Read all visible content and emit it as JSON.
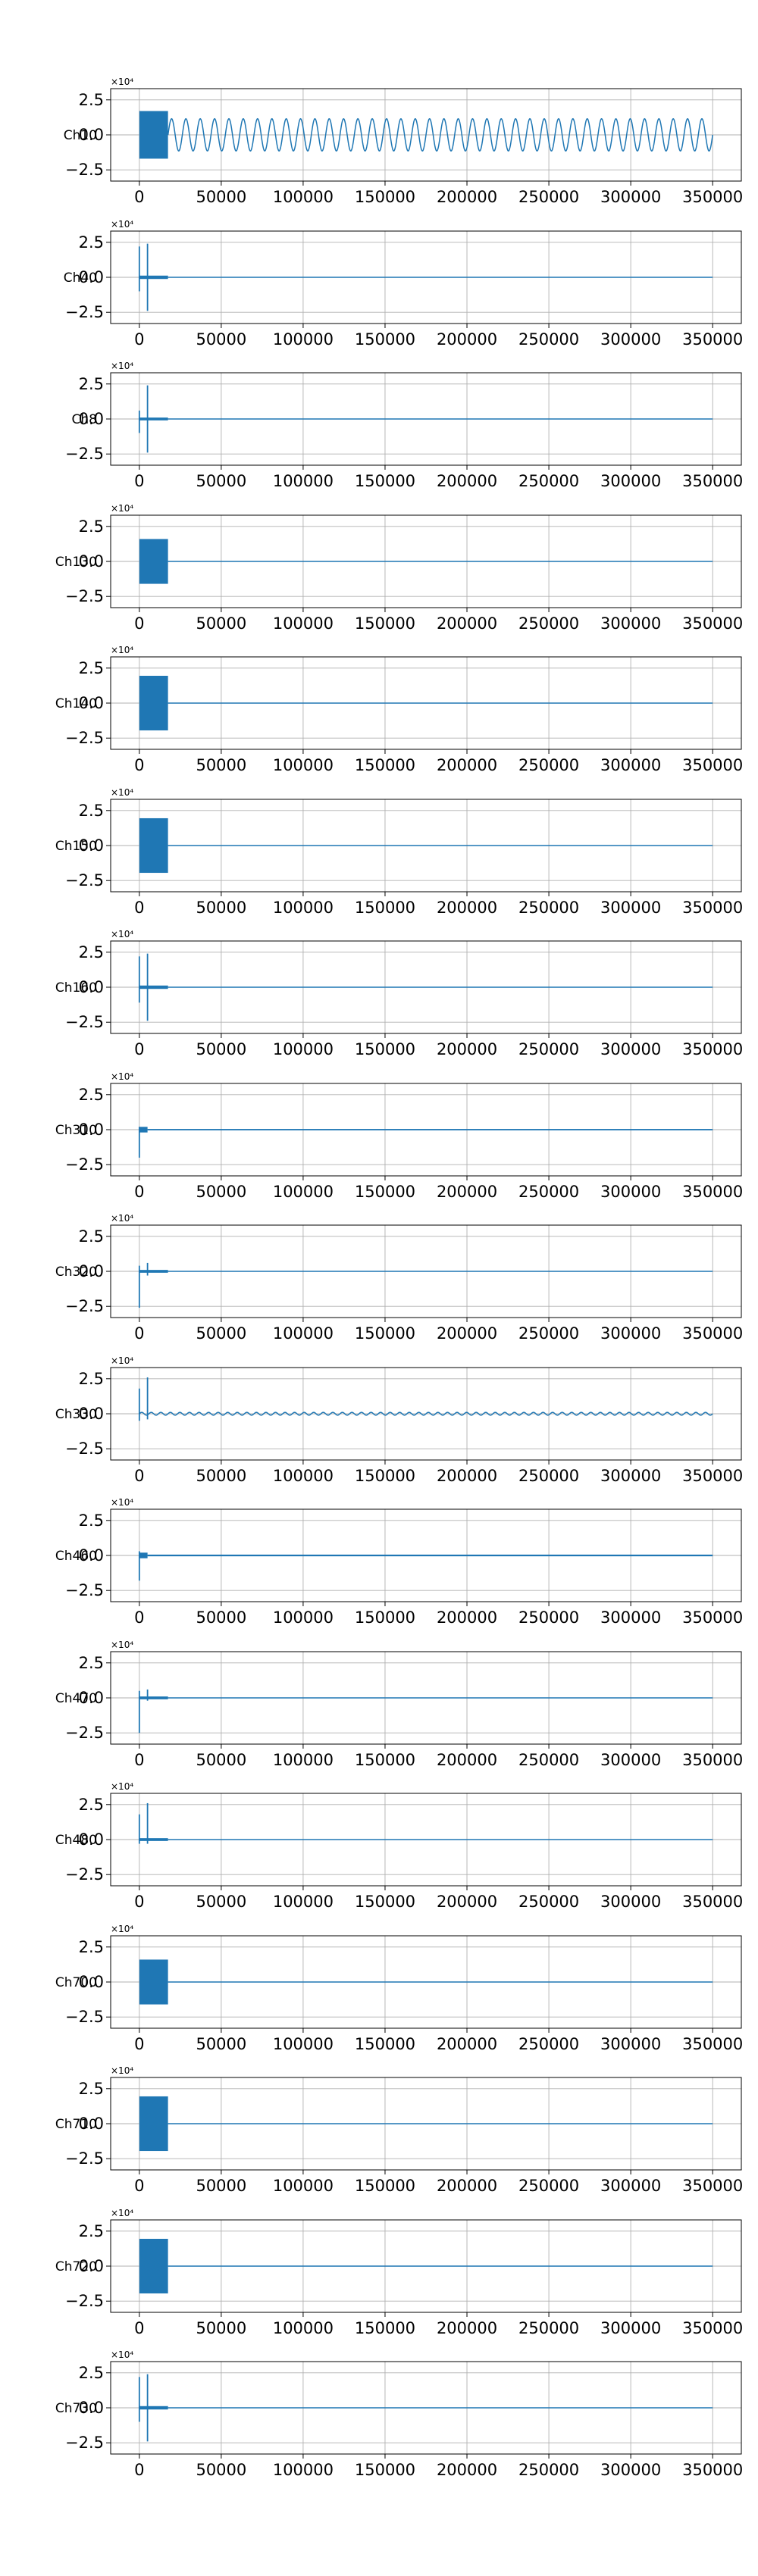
{
  "chart_data": [
    {
      "type": "line",
      "ylabel": "Ch10",
      "yscale_label": "×10⁴",
      "x_ticks": [
        0,
        50000,
        100000,
        150000,
        200000,
        250000,
        300000,
        350000
      ],
      "y_ticks": [
        -2.5,
        0.0,
        2.5
      ],
      "ylim": [
        -3.3,
        3.3
      ],
      "xlim": [
        -17500,
        367500
      ],
      "grid": true,
      "series": [
        {
          "segments": [
            {
              "x_start": 0,
              "x_end": 17500,
              "amplitude": 1.7,
              "kind": "dense"
            },
            {
              "x_start": 17500,
              "x_end": 350000,
              "amplitude": 1.15,
              "kind": "sine",
              "cycles": 38
            }
          ]
        }
      ]
    },
    {
      "type": "line",
      "ylabel": "Ch40",
      "yscale_label": "×10⁴",
      "x_ticks": [
        0,
        50000,
        100000,
        150000,
        200000,
        250000,
        300000,
        350000
      ],
      "y_ticks": [
        -2.5,
        0.0,
        2.5
      ],
      "ylim": [
        -3.3,
        3.3
      ],
      "xlim": [
        -17500,
        367500
      ],
      "grid": true,
      "series": [
        {
          "segments": [
            {
              "x": 0,
              "y_min": -1.0,
              "y_max": 2.2,
              "kind": "spike"
            },
            {
              "x": 5000,
              "y_min": -2.4,
              "y_max": 2.4,
              "kind": "spike"
            },
            {
              "x_start": 0,
              "x_end": 17500,
              "amplitude": 0.12,
              "kind": "dense"
            },
            {
              "x_start": 17500,
              "x_end": 350000,
              "amplitude": 0.0,
              "kind": "flat"
            }
          ]
        }
      ]
    },
    {
      "type": "line",
      "ylabel": "Ch8",
      "yscale_label": "×10⁴",
      "x_ticks": [
        0,
        50000,
        100000,
        150000,
        200000,
        250000,
        300000,
        350000
      ],
      "y_ticks": [
        -2.5,
        0.0,
        2.5
      ],
      "ylim": [
        -3.3,
        3.3
      ],
      "xlim": [
        -17500,
        367500
      ],
      "grid": true,
      "series": [
        {
          "segments": [
            {
              "x": 0,
              "y_min": -1.0,
              "y_max": 0.6,
              "kind": "spike"
            },
            {
              "x": 5000,
              "y_min": -2.4,
              "y_max": 2.4,
              "kind": "spike"
            },
            {
              "x_start": 0,
              "x_end": 17500,
              "amplitude": 0.1,
              "kind": "dense"
            },
            {
              "x_start": 17500,
              "x_end": 350000,
              "amplitude": 0.0,
              "kind": "flat"
            }
          ]
        }
      ]
    },
    {
      "type": "line",
      "ylabel": "Ch130",
      "yscale_label": "×10⁴",
      "x_ticks": [
        0,
        50000,
        100000,
        150000,
        200000,
        250000,
        300000,
        350000
      ],
      "y_ticks": [
        -2.5,
        0.0,
        2.5
      ],
      "ylim": [
        -3.3,
        3.3
      ],
      "xlim": [
        -17500,
        367500
      ],
      "grid": true,
      "series": [
        {
          "segments": [
            {
              "x_start": 0,
              "x_end": 17500,
              "amplitude": 1.6,
              "kind": "dense"
            },
            {
              "x_start": 17500,
              "x_end": 350000,
              "amplitude": 0.0,
              "kind": "flat"
            }
          ]
        }
      ]
    },
    {
      "type": "line",
      "ylabel": "Ch140",
      "yscale_label": "×10⁴",
      "x_ticks": [
        0,
        50000,
        100000,
        150000,
        200000,
        250000,
        300000,
        350000
      ],
      "y_ticks": [
        -2.5,
        0.0,
        2.5
      ],
      "ylim": [
        -3.3,
        3.3
      ],
      "xlim": [
        -17500,
        367500
      ],
      "grid": true,
      "series": [
        {
          "segments": [
            {
              "x_start": 0,
              "x_end": 17500,
              "amplitude": 1.95,
              "kind": "dense"
            },
            {
              "x_start": 17500,
              "x_end": 350000,
              "amplitude": 0.0,
              "kind": "flat"
            }
          ]
        }
      ]
    },
    {
      "type": "line",
      "ylabel": "Ch150",
      "yscale_label": "×10⁴",
      "x_ticks": [
        0,
        50000,
        100000,
        150000,
        200000,
        250000,
        300000,
        350000
      ],
      "y_ticks": [
        -2.5,
        0.0,
        2.5
      ],
      "ylim": [
        -3.3,
        3.3
      ],
      "xlim": [
        -17500,
        367500
      ],
      "grid": true,
      "series": [
        {
          "segments": [
            {
              "x_start": 0,
              "x_end": 17500,
              "amplitude": 1.95,
              "kind": "dense"
            },
            {
              "x_start": 17500,
              "x_end": 350000,
              "amplitude": 0.0,
              "kind": "flat"
            }
          ]
        }
      ]
    },
    {
      "type": "line",
      "ylabel": "Ch160",
      "yscale_label": "×10⁴",
      "x_ticks": [
        0,
        50000,
        100000,
        150000,
        200000,
        250000,
        300000,
        350000
      ],
      "y_ticks": [
        -2.5,
        0.0,
        2.5
      ],
      "ylim": [
        -3.3,
        3.3
      ],
      "xlim": [
        -17500,
        367500
      ],
      "grid": true,
      "series": [
        {
          "segments": [
            {
              "x": 0,
              "y_min": -1.1,
              "y_max": 2.2,
              "kind": "spike"
            },
            {
              "x": 5000,
              "y_min": -2.4,
              "y_max": 2.4,
              "kind": "spike"
            },
            {
              "x_start": 0,
              "x_end": 17500,
              "amplitude": 0.12,
              "kind": "dense"
            },
            {
              "x_start": 17500,
              "x_end": 350000,
              "amplitude": 0.0,
              "kind": "flat"
            }
          ]
        }
      ]
    },
    {
      "type": "line",
      "ylabel": "Ch310",
      "yscale_label": "×10⁴",
      "x_ticks": [
        0,
        50000,
        100000,
        150000,
        200000,
        250000,
        300000,
        350000
      ],
      "y_ticks": [
        -2.5,
        0.0,
        2.5
      ],
      "ylim": [
        -3.3,
        3.3
      ],
      "xlim": [
        -17500,
        367500
      ],
      "grid": true,
      "series": [
        {
          "segments": [
            {
              "x": 0,
              "y_min": -2.0,
              "y_max": 0.2,
              "kind": "spike"
            },
            {
              "x_start": 0,
              "x_end": 5000,
              "amplitude": 0.2,
              "kind": "dense"
            },
            {
              "x_start": 5000,
              "x_end": 350000,
              "amplitude": 0.05,
              "kind": "dense"
            }
          ]
        }
      ]
    },
    {
      "type": "line",
      "ylabel": "Ch320",
      "yscale_label": "×10⁴",
      "x_ticks": [
        0,
        50000,
        100000,
        150000,
        200000,
        250000,
        300000,
        350000
      ],
      "y_ticks": [
        -2.5,
        0.0,
        2.5
      ],
      "ylim": [
        -3.3,
        3.3
      ],
      "xlim": [
        -17500,
        367500
      ],
      "grid": true,
      "series": [
        {
          "segments": [
            {
              "x": 0,
              "y_min": -2.6,
              "y_max": 0.4,
              "kind": "spike"
            },
            {
              "x": 5000,
              "y_min": -0.3,
              "y_max": 0.6,
              "kind": "spike"
            },
            {
              "x_start": 0,
              "x_end": 17500,
              "amplitude": 0.1,
              "kind": "dense"
            },
            {
              "x_start": 17500,
              "x_end": 350000,
              "amplitude": 0.0,
              "kind": "flat"
            }
          ]
        }
      ]
    },
    {
      "type": "line",
      "ylabel": "Ch330",
      "yscale_label": "×10⁴",
      "x_ticks": [
        0,
        50000,
        100000,
        150000,
        200000,
        250000,
        300000,
        350000
      ],
      "y_ticks": [
        -2.5,
        0.0,
        2.5
      ],
      "ylim": [
        -3.3,
        3.3
      ],
      "xlim": [
        -17500,
        367500
      ],
      "grid": true,
      "series": [
        {
          "segments": [
            {
              "x": 0,
              "y_min": -0.5,
              "y_max": 1.8,
              "kind": "spike"
            },
            {
              "x": 5000,
              "y_min": -0.4,
              "y_max": 2.6,
              "kind": "spike"
            },
            {
              "x_start": 0,
              "x_end": 350000,
              "amplitude": 0.1,
              "kind": "sine",
              "cycles": 60
            }
          ]
        }
      ]
    },
    {
      "type": "line",
      "ylabel": "Ch460",
      "yscale_label": "×10⁴",
      "x_ticks": [
        0,
        50000,
        100000,
        150000,
        200000,
        250000,
        300000,
        350000
      ],
      "y_ticks": [
        -2.5,
        0.0,
        2.5
      ],
      "ylim": [
        -3.3,
        3.3
      ],
      "xlim": [
        -17500,
        367500
      ],
      "grid": true,
      "series": [
        {
          "segments": [
            {
              "x": 0,
              "y_min": -1.8,
              "y_max": 0.3,
              "kind": "spike"
            },
            {
              "x_start": 0,
              "x_end": 5000,
              "amplitude": 0.2,
              "kind": "dense"
            },
            {
              "x_start": 5000,
              "x_end": 350000,
              "amplitude": 0.06,
              "kind": "dense"
            }
          ]
        }
      ]
    },
    {
      "type": "line",
      "ylabel": "Ch470",
      "yscale_label": "×10⁴",
      "x_ticks": [
        0,
        50000,
        100000,
        150000,
        200000,
        250000,
        300000,
        350000
      ],
      "y_ticks": [
        -2.5,
        0.0,
        2.5
      ],
      "ylim": [
        -3.3,
        3.3
      ],
      "xlim": [
        -17500,
        367500
      ],
      "grid": true,
      "series": [
        {
          "segments": [
            {
              "x": 0,
              "y_min": -2.5,
              "y_max": 0.5,
              "kind": "spike"
            },
            {
              "x": 5000,
              "y_min": -0.2,
              "y_max": 0.6,
              "kind": "spike"
            },
            {
              "x_start": 0,
              "x_end": 17500,
              "amplitude": 0.1,
              "kind": "dense"
            },
            {
              "x_start": 17500,
              "x_end": 350000,
              "amplitude": 0.0,
              "kind": "flat"
            }
          ]
        }
      ]
    },
    {
      "type": "line",
      "ylabel": "Ch480",
      "yscale_label": "×10⁴",
      "x_ticks": [
        0,
        50000,
        100000,
        150000,
        200000,
        250000,
        300000,
        350000
      ],
      "y_ticks": [
        -2.5,
        0.0,
        2.5
      ],
      "ylim": [
        -3.3,
        3.3
      ],
      "xlim": [
        -17500,
        367500
      ],
      "grid": true,
      "series": [
        {
          "segments": [
            {
              "x": 0,
              "y_min": -0.3,
              "y_max": 1.8,
              "kind": "spike"
            },
            {
              "x": 5000,
              "y_min": -0.3,
              "y_max": 2.6,
              "kind": "spike"
            },
            {
              "x_start": 0,
              "x_end": 17500,
              "amplitude": 0.1,
              "kind": "dense"
            },
            {
              "x_start": 17500,
              "x_end": 350000,
              "amplitude": 0.0,
              "kind": "flat"
            }
          ]
        }
      ]
    },
    {
      "type": "line",
      "ylabel": "Ch700",
      "yscale_label": "×10⁴",
      "x_ticks": [
        0,
        50000,
        100000,
        150000,
        200000,
        250000,
        300000,
        350000
      ],
      "y_ticks": [
        -2.5,
        0.0,
        2.5
      ],
      "ylim": [
        -3.3,
        3.3
      ],
      "xlim": [
        -17500,
        367500
      ],
      "grid": true,
      "series": [
        {
          "segments": [
            {
              "x_start": 0,
              "x_end": 17500,
              "amplitude": 1.6,
              "kind": "dense"
            },
            {
              "x_start": 17500,
              "x_end": 350000,
              "amplitude": 0.0,
              "kind": "flat"
            }
          ]
        }
      ]
    },
    {
      "type": "line",
      "ylabel": "Ch710",
      "yscale_label": "×10⁴",
      "x_ticks": [
        0,
        50000,
        100000,
        150000,
        200000,
        250000,
        300000,
        350000
      ],
      "y_ticks": [
        -2.5,
        0.0,
        2.5
      ],
      "ylim": [
        -3.3,
        3.3
      ],
      "xlim": [
        -17500,
        367500
      ],
      "grid": true,
      "series": [
        {
          "segments": [
            {
              "x_start": 0,
              "x_end": 17500,
              "amplitude": 1.95,
              "kind": "dense"
            },
            {
              "x_start": 17500,
              "x_end": 350000,
              "amplitude": 0.0,
              "kind": "flat"
            }
          ]
        }
      ]
    },
    {
      "type": "line",
      "ylabel": "Ch720",
      "yscale_label": "×10⁴",
      "x_ticks": [
        0,
        50000,
        100000,
        150000,
        200000,
        250000,
        300000,
        350000
      ],
      "y_ticks": [
        -2.5,
        0.0,
        2.5
      ],
      "ylim": [
        -3.3,
        3.3
      ],
      "xlim": [
        -17500,
        367500
      ],
      "grid": true,
      "series": [
        {
          "segments": [
            {
              "x_start": 0,
              "x_end": 17500,
              "amplitude": 1.95,
              "kind": "dense"
            },
            {
              "x_start": 17500,
              "x_end": 350000,
              "amplitude": 0.0,
              "kind": "flat"
            }
          ]
        }
      ]
    },
    {
      "type": "line",
      "ylabel": "Ch730",
      "yscale_label": "×10⁴",
      "x_ticks": [
        0,
        50000,
        100000,
        150000,
        200000,
        250000,
        300000,
        350000
      ],
      "y_ticks": [
        -2.5,
        0.0,
        2.5
      ],
      "ylim": [
        -3.3,
        3.3
      ],
      "xlim": [
        -17500,
        367500
      ],
      "grid": true,
      "series": [
        {
          "segments": [
            {
              "x": 0,
              "y_min": -1.0,
              "y_max": 2.2,
              "kind": "spike"
            },
            {
              "x": 5000,
              "y_min": -2.4,
              "y_max": 2.4,
              "kind": "spike"
            },
            {
              "x_start": 0,
              "x_end": 17500,
              "amplitude": 0.12,
              "kind": "dense"
            },
            {
              "x_start": 17500,
              "x_end": 350000,
              "amplitude": 0.0,
              "kind": "flat"
            }
          ]
        }
      ]
    }
  ],
  "colors": {
    "line": "#1f77b4",
    "grid": "#b0b0b0",
    "axes": "#000000",
    "background": "#ffffff"
  }
}
